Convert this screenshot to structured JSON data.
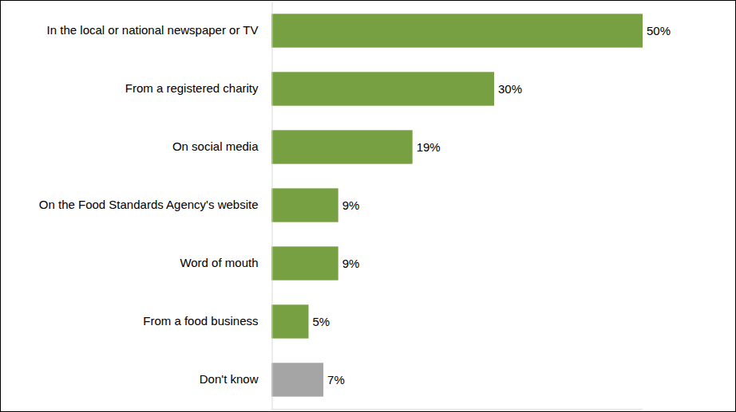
{
  "chart_data": {
    "type": "bar",
    "orientation": "horizontal",
    "categories": [
      "In the local or national newspaper or TV",
      "From a registered charity",
      "On social media",
      "On the Food Standards Agency's website",
      "Word of mouth",
      "From a food business",
      "Don't know"
    ],
    "values": [
      50,
      30,
      19,
      9,
      9,
      5,
      7
    ],
    "value_labels": [
      "50%",
      "30%",
      "19%",
      "9%",
      "9%",
      "5%",
      "7%"
    ],
    "colors": [
      "#77a043",
      "#77a043",
      "#77a043",
      "#77a043",
      "#77a043",
      "#77a043",
      "#a5a5a5"
    ],
    "xlim": [
      0,
      50
    ],
    "data_labels": true,
    "tick_labels": "y",
    "grid": false
  }
}
